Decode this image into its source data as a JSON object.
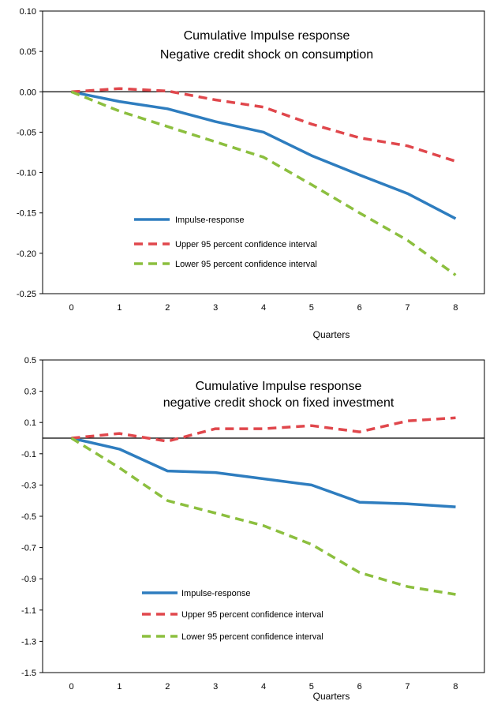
{
  "chart_data": [
    {
      "type": "line",
      "title": "Cumulative Impulse response",
      "subtitle": "Negative credit shock on consumption",
      "xlabel": "Quarters",
      "ylabel": "",
      "x": [
        0,
        1,
        2,
        3,
        4,
        5,
        6,
        7,
        8
      ],
      "ylim": [
        -0.25,
        0.1
      ],
      "yticks": [
        "0.10",
        "0.05",
        "0.00",
        "-0.05",
        "-0.10",
        "-0.15",
        "-0.20",
        "-0.25"
      ],
      "ytick_values": [
        0.1,
        0.05,
        0.0,
        -0.05,
        -0.1,
        -0.15,
        -0.2,
        -0.25
      ],
      "legend_position": "bottom-center",
      "grid": false,
      "series": [
        {
          "name": "Impulse-response",
          "color": "#2e7dbf",
          "dash": "solid",
          "values": [
            0.0,
            -0.012,
            -0.021,
            -0.037,
            -0.05,
            -0.079,
            -0.103,
            -0.126,
            -0.157
          ]
        },
        {
          "name": "Upper 95 percent confidence interval",
          "color": "#e0474c",
          "dash": "dashed",
          "values": [
            0.0,
            0.004,
            0.001,
            -0.01,
            -0.019,
            -0.04,
            -0.057,
            -0.067,
            -0.086
          ]
        },
        {
          "name": "Lower 95 percent confidence interval",
          "color": "#8cbf3f",
          "dash": "dashed",
          "values": [
            0.0,
            -0.024,
            -0.043,
            -0.062,
            -0.081,
            -0.115,
            -0.15,
            -0.184,
            -0.227
          ]
        }
      ]
    },
    {
      "type": "line",
      "title": "Cumulative Impulse response",
      "subtitle": "negative credit shock on fixed investment",
      "xlabel": "Quarters",
      "ylabel": "",
      "x": [
        0,
        1,
        2,
        3,
        4,
        5,
        6,
        7,
        8
      ],
      "ylim": [
        -1.5,
        0.5
      ],
      "yticks": [
        "0.5",
        "0.3",
        "0.1",
        "-0.1",
        "-0.3",
        "-0.5",
        "-0.7",
        "-0.9",
        "-1.1",
        "-1.3",
        "-1.5"
      ],
      "ytick_values": [
        0.5,
        0.3,
        0.1,
        -0.1,
        -0.3,
        -0.5,
        -0.7,
        -0.9,
        -1.1,
        -1.3,
        -1.5
      ],
      "legend_position": "bottom-center",
      "grid": false,
      "series": [
        {
          "name": "Impulse-response",
          "color": "#2e7dbf",
          "dash": "solid",
          "values": [
            0.0,
            -0.07,
            -0.21,
            -0.22,
            -0.26,
            -0.3,
            -0.41,
            -0.42,
            -0.44
          ]
        },
        {
          "name": "Upper 95 percent confidence interval",
          "color": "#e0474c",
          "dash": "dashed",
          "values": [
            0.0,
            0.03,
            -0.02,
            0.06,
            0.06,
            0.08,
            0.04,
            0.11,
            0.13
          ]
        },
        {
          "name": "Lower 95 percent confidence interval",
          "color": "#8cbf3f",
          "dash": "dashed",
          "values": [
            0.0,
            -0.19,
            -0.4,
            -0.48,
            -0.56,
            -0.68,
            -0.86,
            -0.95,
            -1.0
          ]
        }
      ]
    }
  ]
}
